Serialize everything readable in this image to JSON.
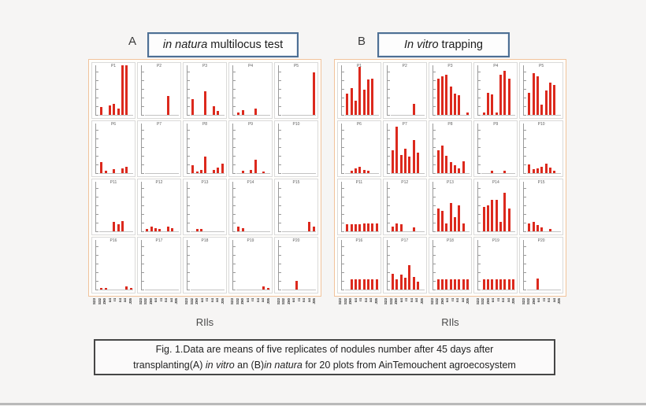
{
  "figure": {
    "background_color": "#f6f5f4",
    "bar_color": "#dc291d",
    "panel_border_color": "#f1c39c",
    "title_border_color": "#4d6f94",
    "panels": [
      {
        "letter": "A",
        "title_italic": "in natura",
        "title_rest": "multilocus test",
        "x_axis_title": "RIls"
      },
      {
        "letter": "B",
        "title_italic": "In vitro",
        "title_rest": "trapping",
        "x_axis_title": "RIls"
      }
    ],
    "caption": {
      "line1": "Fig. 1.Data are means of five replicates of nodules number after 45 days after",
      "line2_pre": "transplanting(A) ",
      "line2_italic1": "in vitro",
      "line2_mid": " an (B)",
      "line2_italic2": "in natura",
      "line2_post": " for 20 plots from AinTemouchent agroecosystem"
    }
  },
  "chart_data": [
    {
      "type": "bar",
      "panel": "A",
      "title": "in natura multilocus test",
      "xlabel": "RIls",
      "ylabel": "",
      "ylim": [
        0,
        10
      ],
      "grid": false,
      "legend": "none",
      "x_tick_labels": [
        "S23",
        "S32",
        "Z60",
        "o4",
        "r4",
        "n4",
        "a4",
        "J35"
      ],
      "subplots": [
        {
          "label": "P1",
          "values": [
            1.6,
            0,
            1.9,
            2.2,
            1.2,
            9.8,
            9.8,
            0
          ]
        },
        {
          "label": "P2",
          "values": [
            0,
            0,
            0,
            0,
            0,
            3.7,
            0,
            0
          ]
        },
        {
          "label": "P3",
          "values": [
            3.1,
            0,
            0,
            4.7,
            0,
            1.7,
            0.8,
            0
          ]
        },
        {
          "label": "P4",
          "values": [
            0.5,
            0.9,
            0,
            0,
            1.2,
            0,
            0,
            0
          ]
        },
        {
          "label": "P5",
          "values": [
            0,
            0,
            0,
            0,
            0,
            0,
            0,
            8.5
          ]
        },
        {
          "label": "P6",
          "values": [
            2.2,
            0.5,
            0,
            0.8,
            0,
            1.0,
            1.3,
            0
          ]
        },
        {
          "label": "P7",
          "values": [
            0,
            0,
            0,
            0,
            0,
            0,
            0,
            0
          ]
        },
        {
          "label": "P8",
          "values": [
            1.5,
            0.3,
            0.7,
            3.3,
            0,
            0.7,
            1.1,
            1.8
          ]
        },
        {
          "label": "P9",
          "values": [
            0,
            0.5,
            0,
            0.7,
            2.7,
            0,
            0.3,
            0
          ]
        },
        {
          "label": "P10",
          "values": [
            0,
            0,
            0,
            0,
            0,
            0,
            0,
            0
          ]
        },
        {
          "label": "P11",
          "values": [
            0,
            0,
            0,
            1.8,
            1.4,
            2.1,
            0,
            0
          ]
        },
        {
          "label": "P12",
          "values": [
            0.5,
            0.9,
            0.7,
            0.4,
            0,
            0.9,
            0.6,
            0
          ]
        },
        {
          "label": "P13",
          "values": [
            0,
            0.4,
            0.45,
            0,
            0,
            0,
            0,
            0
          ]
        },
        {
          "label": "P14",
          "values": [
            0.9,
            0.6,
            0,
            0,
            0,
            0,
            0,
            0
          ]
        },
        {
          "label": "P15",
          "values": [
            0,
            0,
            0,
            0,
            0,
            0,
            1.9,
            1.0
          ]
        },
        {
          "label": "P16",
          "values": [
            0.3,
            0.3,
            0,
            0,
            0,
            0,
            0.7,
            0.25
          ]
        },
        {
          "label": "P17",
          "values": [
            0,
            0,
            0,
            0,
            0,
            0,
            0,
            0
          ]
        },
        {
          "label": "P18",
          "values": [
            0,
            0,
            0,
            0,
            0,
            0,
            0,
            0
          ]
        },
        {
          "label": "P19",
          "values": [
            0,
            0,
            0,
            0,
            0,
            0,
            0.7,
            0.3
          ]
        },
        {
          "label": "P20",
          "values": [
            0,
            0,
            0,
            1.75,
            0,
            0,
            0,
            0
          ]
        }
      ]
    },
    {
      "type": "bar",
      "panel": "B",
      "title": "In vitro trapping",
      "xlabel": "RIls",
      "ylabel": "",
      "ylim": [
        0,
        10
      ],
      "grid": false,
      "legend": "none",
      "x_tick_labels": [
        "S23",
        "S32",
        "Z60",
        "o4",
        "r4",
        "n4",
        "a4",
        "J35"
      ],
      "subplots": [
        {
          "label": "P1",
          "values": [
            4.2,
            5.3,
            2.8,
            9.5,
            5.0,
            7.0,
            7.2,
            0
          ]
        },
        {
          "label": "P2",
          "values": [
            0,
            0,
            0,
            0,
            0,
            2.2,
            0,
            0
          ]
        },
        {
          "label": "P3",
          "values": [
            7.2,
            7.6,
            7.9,
            5.7,
            4.2,
            3.9,
            0,
            0.4
          ]
        },
        {
          "label": "P4",
          "values": [
            0.4,
            4.4,
            4.1,
            0.5,
            8.0,
            8.8,
            7.2,
            0
          ]
        },
        {
          "label": "P5",
          "values": [
            4.3,
            8.3,
            7.6,
            2.1,
            4.8,
            6.4,
            5.9,
            0
          ]
        },
        {
          "label": "P6",
          "values": [
            0,
            0.5,
            1.0,
            1.2,
            0.7,
            0.5,
            0,
            0
          ]
        },
        {
          "label": "P7",
          "values": [
            4.5,
            9.2,
            3.6,
            4.8,
            3.3,
            6.5,
            4.0,
            0
          ]
        },
        {
          "label": "P8",
          "values": [
            4.6,
            5.4,
            3.4,
            2.2,
            1.5,
            1.0,
            2.3,
            0
          ]
        },
        {
          "label": "P9",
          "values": [
            0,
            0,
            0.4,
            0,
            0,
            0.5,
            0,
            0
          ]
        },
        {
          "label": "P10",
          "values": [
            1.7,
            0.8,
            1.0,
            1.3,
            1.9,
            1.1,
            0.4,
            0
          ]
        },
        {
          "label": "P11",
          "values": [
            1.4,
            1.4,
            1.4,
            1.4,
            1.5,
            1.5,
            1.5,
            1.6
          ]
        },
        {
          "label": "P12",
          "values": [
            0.9,
            1.5,
            1.4,
            0,
            0,
            0.8,
            0,
            0
          ]
        },
        {
          "label": "P13",
          "values": [
            4.6,
            4.1,
            1.5,
            5.6,
            2.8,
            5.1,
            1.5,
            0
          ]
        },
        {
          "label": "P14",
          "values": [
            4.9,
            5.1,
            6.2,
            6.2,
            1.8,
            7.7,
            4.6,
            0
          ]
        },
        {
          "label": "P15",
          "values": [
            1.5,
            1.8,
            1.3,
            0.8,
            0,
            0.4,
            0,
            0
          ]
        },
        {
          "label": "P16",
          "values": [
            0,
            2.1,
            2.1,
            2.1,
            2.1,
            2.1,
            2.1,
            2.1
          ]
        },
        {
          "label": "P17",
          "values": [
            3.2,
            2.0,
            2.9,
            2.3,
            4.9,
            2.5,
            1.5,
            0
          ]
        },
        {
          "label": "P18",
          "values": [
            2.0,
            2.0,
            2.0,
            2.0,
            2.0,
            2.0,
            2.0,
            2.0
          ]
        },
        {
          "label": "P19",
          "values": [
            2.1,
            2.1,
            2.1,
            2.1,
            2.1,
            2.1,
            2.1,
            2.1
          ]
        },
        {
          "label": "P20",
          "values": [
            0,
            0,
            2.2,
            0,
            0,
            0,
            0,
            0
          ]
        }
      ]
    }
  ]
}
